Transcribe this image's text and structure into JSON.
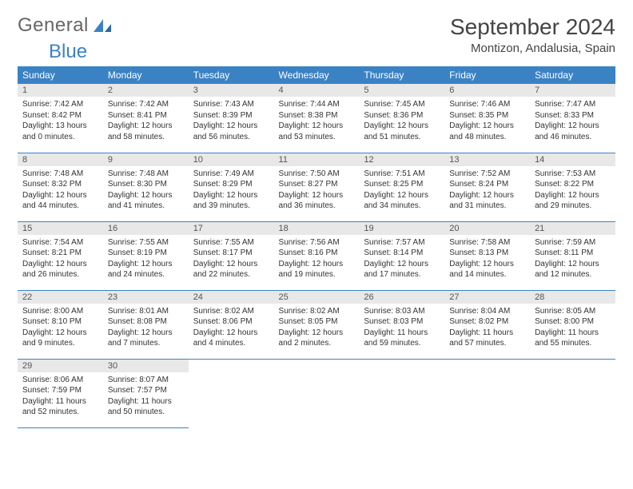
{
  "logo": {
    "text1": "General",
    "text2": "Blue"
  },
  "title": "September 2024",
  "location": "Montizon, Andalusia, Spain",
  "colors": {
    "header_bg": "#3b82c4",
    "header_text": "#ffffff",
    "daynum_bg": "#e8e8e8",
    "border": "#3b82c4",
    "logo_blue": "#3b82c4",
    "logo_gray": "#666666"
  },
  "days_of_week": [
    "Sunday",
    "Monday",
    "Tuesday",
    "Wednesday",
    "Thursday",
    "Friday",
    "Saturday"
  ],
  "start_offset": 0,
  "days": [
    {
      "n": 1,
      "sunrise": "7:42 AM",
      "sunset": "8:42 PM",
      "daylight": "13 hours and 0 minutes."
    },
    {
      "n": 2,
      "sunrise": "7:42 AM",
      "sunset": "8:41 PM",
      "daylight": "12 hours and 58 minutes."
    },
    {
      "n": 3,
      "sunrise": "7:43 AM",
      "sunset": "8:39 PM",
      "daylight": "12 hours and 56 minutes."
    },
    {
      "n": 4,
      "sunrise": "7:44 AM",
      "sunset": "8:38 PM",
      "daylight": "12 hours and 53 minutes."
    },
    {
      "n": 5,
      "sunrise": "7:45 AM",
      "sunset": "8:36 PM",
      "daylight": "12 hours and 51 minutes."
    },
    {
      "n": 6,
      "sunrise": "7:46 AM",
      "sunset": "8:35 PM",
      "daylight": "12 hours and 48 minutes."
    },
    {
      "n": 7,
      "sunrise": "7:47 AM",
      "sunset": "8:33 PM",
      "daylight": "12 hours and 46 minutes."
    },
    {
      "n": 8,
      "sunrise": "7:48 AM",
      "sunset": "8:32 PM",
      "daylight": "12 hours and 44 minutes."
    },
    {
      "n": 9,
      "sunrise": "7:48 AM",
      "sunset": "8:30 PM",
      "daylight": "12 hours and 41 minutes."
    },
    {
      "n": 10,
      "sunrise": "7:49 AM",
      "sunset": "8:29 PM",
      "daylight": "12 hours and 39 minutes."
    },
    {
      "n": 11,
      "sunrise": "7:50 AM",
      "sunset": "8:27 PM",
      "daylight": "12 hours and 36 minutes."
    },
    {
      "n": 12,
      "sunrise": "7:51 AM",
      "sunset": "8:25 PM",
      "daylight": "12 hours and 34 minutes."
    },
    {
      "n": 13,
      "sunrise": "7:52 AM",
      "sunset": "8:24 PM",
      "daylight": "12 hours and 31 minutes."
    },
    {
      "n": 14,
      "sunrise": "7:53 AM",
      "sunset": "8:22 PM",
      "daylight": "12 hours and 29 minutes."
    },
    {
      "n": 15,
      "sunrise": "7:54 AM",
      "sunset": "8:21 PM",
      "daylight": "12 hours and 26 minutes."
    },
    {
      "n": 16,
      "sunrise": "7:55 AM",
      "sunset": "8:19 PM",
      "daylight": "12 hours and 24 minutes."
    },
    {
      "n": 17,
      "sunrise": "7:55 AM",
      "sunset": "8:17 PM",
      "daylight": "12 hours and 22 minutes."
    },
    {
      "n": 18,
      "sunrise": "7:56 AM",
      "sunset": "8:16 PM",
      "daylight": "12 hours and 19 minutes."
    },
    {
      "n": 19,
      "sunrise": "7:57 AM",
      "sunset": "8:14 PM",
      "daylight": "12 hours and 17 minutes."
    },
    {
      "n": 20,
      "sunrise": "7:58 AM",
      "sunset": "8:13 PM",
      "daylight": "12 hours and 14 minutes."
    },
    {
      "n": 21,
      "sunrise": "7:59 AM",
      "sunset": "8:11 PM",
      "daylight": "12 hours and 12 minutes."
    },
    {
      "n": 22,
      "sunrise": "8:00 AM",
      "sunset": "8:10 PM",
      "daylight": "12 hours and 9 minutes."
    },
    {
      "n": 23,
      "sunrise": "8:01 AM",
      "sunset": "8:08 PM",
      "daylight": "12 hours and 7 minutes."
    },
    {
      "n": 24,
      "sunrise": "8:02 AM",
      "sunset": "8:06 PM",
      "daylight": "12 hours and 4 minutes."
    },
    {
      "n": 25,
      "sunrise": "8:02 AM",
      "sunset": "8:05 PM",
      "daylight": "12 hours and 2 minutes."
    },
    {
      "n": 26,
      "sunrise": "8:03 AM",
      "sunset": "8:03 PM",
      "daylight": "11 hours and 59 minutes."
    },
    {
      "n": 27,
      "sunrise": "8:04 AM",
      "sunset": "8:02 PM",
      "daylight": "11 hours and 57 minutes."
    },
    {
      "n": 28,
      "sunrise": "8:05 AM",
      "sunset": "8:00 PM",
      "daylight": "11 hours and 55 minutes."
    },
    {
      "n": 29,
      "sunrise": "8:06 AM",
      "sunset": "7:59 PM",
      "daylight": "11 hours and 52 minutes."
    },
    {
      "n": 30,
      "sunrise": "8:07 AM",
      "sunset": "7:57 PM",
      "daylight": "11 hours and 50 minutes."
    }
  ],
  "labels": {
    "sunrise": "Sunrise:",
    "sunset": "Sunset:",
    "daylight": "Daylight:"
  }
}
